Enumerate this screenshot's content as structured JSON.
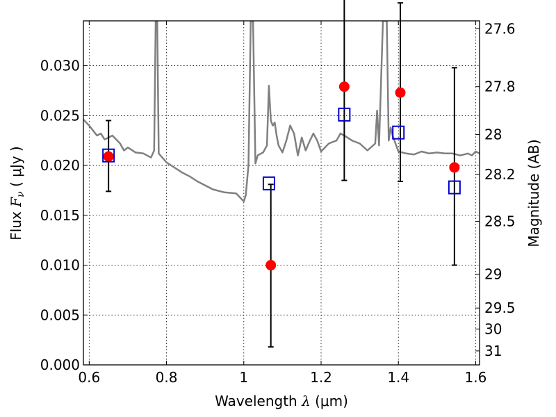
{
  "chart_data": {
    "type": "scatter",
    "xlabel": {
      "pre": "Wavelength  ",
      "sym": "λ",
      "post": " (μm)"
    },
    "ylabel": {
      "pre": "Flux  ",
      "sym": "F",
      "sub": "ν",
      "post": "  ( μJy )"
    },
    "y2label": "Magnitude (AB)",
    "xlim": [
      0.585,
      1.61
    ],
    "ylim": [
      0.0,
      0.0345
    ],
    "grid": true,
    "x_ticks": [
      {
        "value": 0.6,
        "label": "0.6"
      },
      {
        "value": 0.8,
        "label": "0.8"
      },
      {
        "value": 1.0,
        "label": "1"
      },
      {
        "value": 1.2,
        "label": "1.2"
      },
      {
        "value": 1.4,
        "label": "1.4"
      },
      {
        "value": 1.6,
        "label": "1.6"
      }
    ],
    "y_ticks": [
      {
        "value": 0.0,
        "label": "0.000"
      },
      {
        "value": 0.005,
        "label": "0.005"
      },
      {
        "value": 0.01,
        "label": "0.010"
      },
      {
        "value": 0.015,
        "label": "0.015"
      },
      {
        "value": 0.02,
        "label": "0.020"
      },
      {
        "value": 0.025,
        "label": "0.025"
      },
      {
        "value": 0.03,
        "label": "0.030"
      }
    ],
    "y2_ticks": [
      {
        "flux": 0.0337,
        "label": "27.6"
      },
      {
        "flux": 0.0279,
        "label": "27.8"
      },
      {
        "flux": 0.0231,
        "label": "28"
      },
      {
        "flux": 0.0191,
        "label": "28.2"
      },
      {
        "flux": 0.0144,
        "label": "28.5"
      },
      {
        "flux": 0.0091,
        "label": "29"
      },
      {
        "flux": 0.0057,
        "label": "29.5"
      },
      {
        "flux": 0.0036,
        "label": "30"
      },
      {
        "flux": 0.0014,
        "label": "31"
      }
    ],
    "colors": {
      "model": "#808080",
      "observed": "#ff0000",
      "model_band": "#0000cc",
      "errorbar": "#000000"
    },
    "observed": [
      {
        "x": 0.65,
        "y": 0.0209,
        "yerr_low": 0.0035,
        "yerr_high": 0.0036
      },
      {
        "x": 1.07,
        "y": 0.01,
        "yerr_low": 0.0082,
        "yerr_high": 0.0081
      },
      {
        "x": 1.26,
        "y": 0.0279,
        "yerr_low": 0.0094,
        "yerr_high": 0.0098
      },
      {
        "x": 1.405,
        "y": 0.0273,
        "yerr_low": 0.0089,
        "yerr_high": 0.009
      },
      {
        "x": 1.545,
        "y": 0.0198,
        "yerr_low": 0.0098,
        "yerr_high": 0.01
      }
    ],
    "model_band": [
      {
        "x": 0.65,
        "y": 0.021
      },
      {
        "x": 1.065,
        "y": 0.0182
      },
      {
        "x": 1.26,
        "y": 0.0251
      },
      {
        "x": 1.4,
        "y": 0.0233
      },
      {
        "x": 1.545,
        "y": 0.0178
      }
    ],
    "model_spectrum": {
      "x": [
        0.585,
        0.6,
        0.62,
        0.63,
        0.64,
        0.66,
        0.68,
        0.69,
        0.7,
        0.72,
        0.74,
        0.76,
        0.768,
        0.772,
        0.776,
        0.78,
        0.8,
        0.84,
        0.86,
        0.88,
        0.9,
        0.92,
        0.95,
        0.98,
        1.0,
        1.005,
        1.012,
        1.018,
        1.024,
        1.03,
        1.036,
        1.04,
        1.05,
        1.06,
        1.065,
        1.07,
        1.075,
        1.08,
        1.085,
        1.09,
        1.1,
        1.11,
        1.12,
        1.13,
        1.14,
        1.15,
        1.16,
        1.17,
        1.18,
        1.19,
        1.2,
        1.22,
        1.24,
        1.25,
        1.26,
        1.28,
        1.3,
        1.32,
        1.34,
        1.345,
        1.35,
        1.36,
        1.37,
        1.375,
        1.38,
        1.385,
        1.4,
        1.42,
        1.44,
        1.46,
        1.48,
        1.5,
        1.52,
        1.54,
        1.56,
        1.58,
        1.59,
        1.6,
        1.61
      ],
      "y": [
        0.0246,
        0.024,
        0.023,
        0.0232,
        0.0226,
        0.023,
        0.0222,
        0.0215,
        0.0218,
        0.0213,
        0.0212,
        0.0208,
        0.0215,
        0.0345,
        0.0345,
        0.0212,
        0.0203,
        0.0193,
        0.0189,
        0.0184,
        0.018,
        0.0176,
        0.0173,
        0.0172,
        0.0164,
        0.017,
        0.02,
        0.0345,
        0.0345,
        0.0202,
        0.021,
        0.0211,
        0.0213,
        0.022,
        0.028,
        0.0245,
        0.024,
        0.0243,
        0.023,
        0.022,
        0.0213,
        0.0225,
        0.024,
        0.0232,
        0.021,
        0.0228,
        0.0215,
        0.0224,
        0.0232,
        0.0225,
        0.0214,
        0.0222,
        0.0225,
        0.0232,
        0.023,
        0.0225,
        0.0222,
        0.0215,
        0.0222,
        0.0255,
        0.022,
        0.0345,
        0.0345,
        0.0225,
        0.0238,
        0.023,
        0.0214,
        0.0212,
        0.0211,
        0.0214,
        0.0212,
        0.0213,
        0.0212,
        0.0212,
        0.021,
        0.0212,
        0.021,
        0.0214,
        0.0212
      ]
    }
  }
}
